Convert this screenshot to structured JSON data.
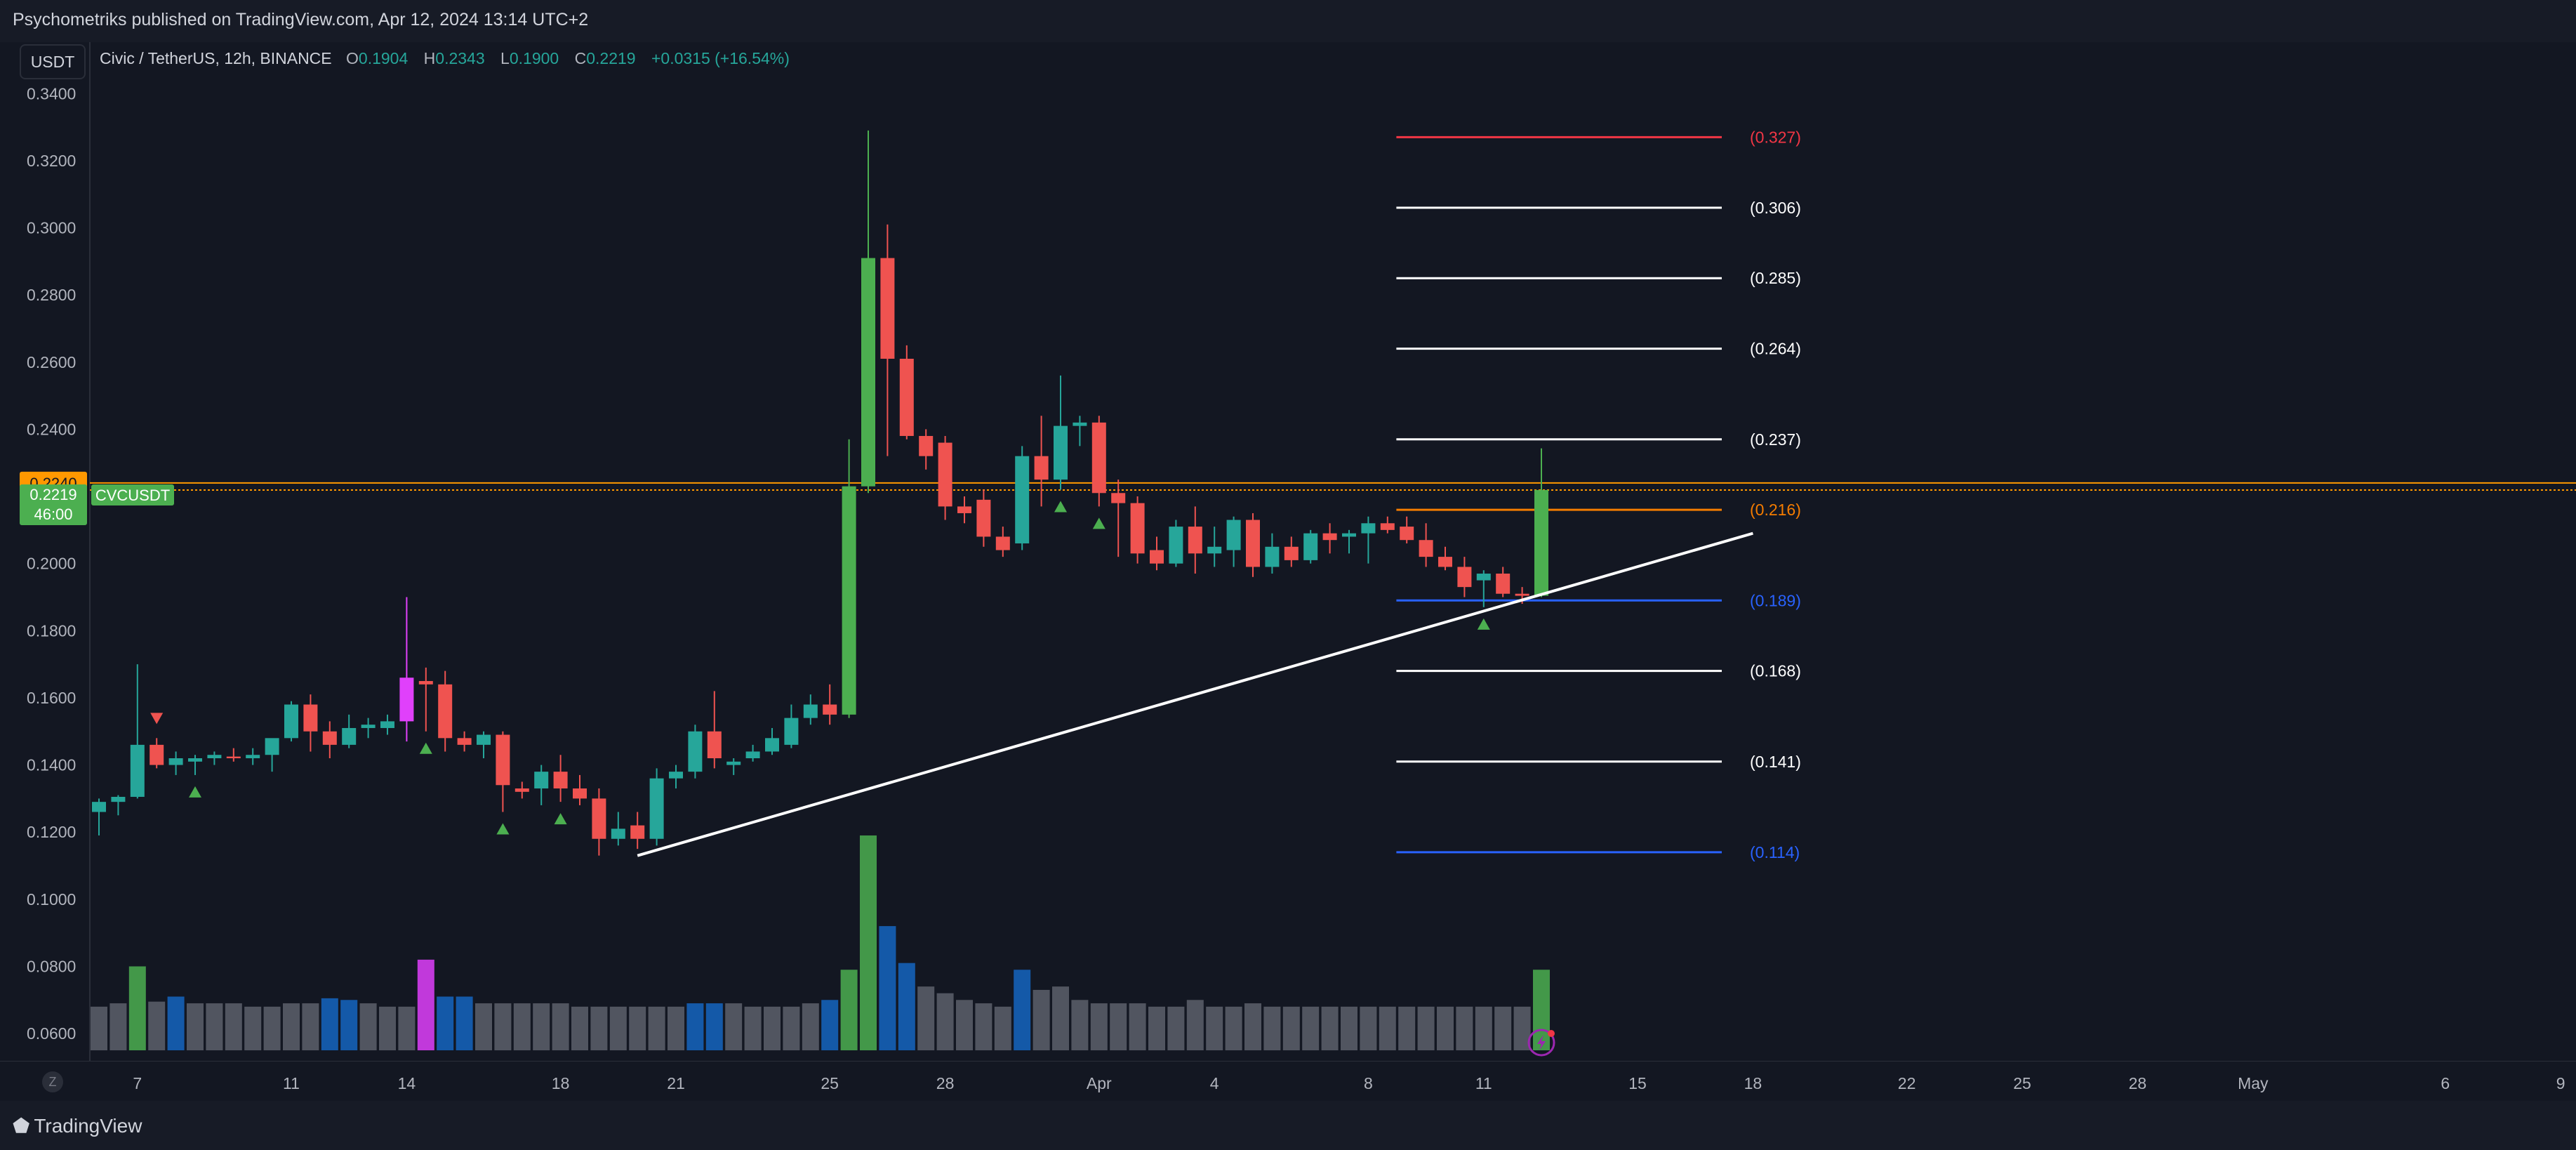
{
  "header": {
    "publisher": "Psychometriks published on TradingView.com, Apr 12, 2024 13:14 UTC+2",
    "currency_button": "USDT"
  },
  "legend": {
    "symbol": "Civic / TetherUS, 12h, BINANCE",
    "o_label": "O",
    "o": "0.1904",
    "h_label": "H",
    "h": "0.2343",
    "l_label": "L",
    "l": "0.1900",
    "c_label": "C",
    "c": "0.2219",
    "change": "+0.0315 (+16.54%)"
  },
  "footer": {
    "brand": "TradingView",
    "zoom_button": "Z"
  },
  "colors": {
    "background": "#131722",
    "up": "#26a69a",
    "down": "#ef5350",
    "signal_up": "#4caf50",
    "magenta": "#e040fb",
    "volume_neutral": "#5d606b",
    "volume_blue": "#1565c0",
    "price_line": "#ff9800",
    "trendline": "#ffffff"
  },
  "chart_data": {
    "type": "candlestick",
    "symbol": "CVCUSDT",
    "timeframe": "12h",
    "ylim": [
      0.055,
      0.348
    ],
    "y_ticks": [
      "0.3400",
      "0.3200",
      "0.3000",
      "0.2800",
      "0.2600",
      "0.2400",
      "0.2200",
      "0.2000",
      "0.1800",
      "0.1600",
      "0.1400",
      "0.1200",
      "0.1000",
      "0.0800",
      "0.0600"
    ],
    "x_tick_labels": [
      {
        "label": "7",
        "bar": 2
      },
      {
        "label": "11",
        "bar": 10
      },
      {
        "label": "14",
        "bar": 16
      },
      {
        "label": "18",
        "bar": 24
      },
      {
        "label": "21",
        "bar": 30
      },
      {
        "label": "25",
        "bar": 38
      },
      {
        "label": "28",
        "bar": 44
      },
      {
        "label": "Apr",
        "bar": 52
      },
      {
        "label": "4",
        "bar": 58
      },
      {
        "label": "8",
        "bar": 66
      },
      {
        "label": "11",
        "bar": 72
      },
      {
        "label": "15",
        "bar": 80
      },
      {
        "label": "18",
        "bar": 86
      },
      {
        "label": "22",
        "bar": 94
      },
      {
        "label": "25",
        "bar": 100
      },
      {
        "label": "28",
        "bar": 106
      },
      {
        "label": "May",
        "bar": 112
      },
      {
        "label": "6",
        "bar": 122
      },
      {
        "label": "9",
        "bar": 128
      }
    ],
    "candles": [
      [
        0.126,
        0.13,
        0.119,
        0.129
      ],
      [
        0.129,
        0.131,
        0.125,
        0.1305
      ],
      [
        0.1305,
        0.17,
        0.13,
        0.146
      ],
      [
        0.146,
        0.148,
        0.139,
        0.14
      ],
      [
        0.14,
        0.144,
        0.137,
        0.142
      ],
      [
        0.141,
        0.143,
        0.137,
        0.142
      ],
      [
        0.142,
        0.144,
        0.14,
        0.143
      ],
      [
        0.1425,
        0.145,
        0.141,
        0.142
      ],
      [
        0.142,
        0.145,
        0.14,
        0.143
      ],
      [
        0.143,
        0.147,
        0.138,
        0.148
      ],
      [
        0.148,
        0.159,
        0.147,
        0.158
      ],
      [
        0.158,
        0.161,
        0.144,
        0.15
      ],
      [
        0.15,
        0.153,
        0.142,
        0.146
      ],
      [
        0.146,
        0.155,
        0.145,
        0.151
      ],
      [
        0.151,
        0.154,
        0.148,
        0.152
      ],
      [
        0.151,
        0.155,
        0.149,
        0.153
      ],
      [
        0.153,
        0.19,
        0.147,
        0.166
      ],
      [
        0.165,
        0.169,
        0.15,
        0.164
      ],
      [
        0.164,
        0.168,
        0.144,
        0.148
      ],
      [
        0.148,
        0.15,
        0.144,
        0.146
      ],
      [
        0.146,
        0.15,
        0.142,
        0.149
      ],
      [
        0.149,
        0.15,
        0.126,
        0.134
      ],
      [
        0.133,
        0.135,
        0.13,
        0.132
      ],
      [
        0.133,
        0.14,
        0.128,
        0.138
      ],
      [
        0.138,
        0.143,
        0.129,
        0.133
      ],
      [
        0.133,
        0.137,
        0.128,
        0.13
      ],
      [
        0.13,
        0.133,
        0.113,
        0.118
      ],
      [
        0.118,
        0.126,
        0.116,
        0.121
      ],
      [
        0.122,
        0.126,
        0.115,
        0.118
      ],
      [
        0.118,
        0.139,
        0.116,
        0.136
      ],
      [
        0.136,
        0.14,
        0.133,
        0.138
      ],
      [
        0.138,
        0.152,
        0.136,
        0.15
      ],
      [
        0.15,
        0.162,
        0.139,
        0.142
      ],
      [
        0.14,
        0.142,
        0.137,
        0.141
      ],
      [
        0.142,
        0.146,
        0.141,
        0.144
      ],
      [
        0.144,
        0.151,
        0.143,
        0.148
      ],
      [
        0.146,
        0.158,
        0.145,
        0.154
      ],
      [
        0.154,
        0.161,
        0.152,
        0.158
      ],
      [
        0.158,
        0.164,
        0.152,
        0.155
      ],
      [
        0.155,
        0.237,
        0.154,
        0.223
      ],
      [
        0.223,
        0.329,
        0.221,
        0.291
      ],
      [
        0.291,
        0.301,
        0.232,
        0.261
      ],
      [
        0.261,
        0.265,
        0.237,
        0.238
      ],
      [
        0.238,
        0.24,
        0.228,
        0.232
      ],
      [
        0.236,
        0.238,
        0.213,
        0.217
      ],
      [
        0.217,
        0.22,
        0.212,
        0.215
      ],
      [
        0.219,
        0.222,
        0.205,
        0.208
      ],
      [
        0.208,
        0.211,
        0.202,
        0.204
      ],
      [
        0.206,
        0.235,
        0.204,
        0.232
      ],
      [
        0.232,
        0.244,
        0.217,
        0.225
      ],
      [
        0.225,
        0.256,
        0.222,
        0.241
      ],
      [
        0.241,
        0.244,
        0.235,
        0.242
      ],
      [
        0.242,
        0.244,
        0.217,
        0.221
      ],
      [
        0.221,
        0.225,
        0.202,
        0.218
      ],
      [
        0.218,
        0.22,
        0.2,
        0.203
      ],
      [
        0.204,
        0.208,
        0.198,
        0.2
      ],
      [
        0.2,
        0.213,
        0.199,
        0.211
      ],
      [
        0.211,
        0.217,
        0.197,
        0.203
      ],
      [
        0.203,
        0.211,
        0.199,
        0.205
      ],
      [
        0.204,
        0.214,
        0.199,
        0.213
      ],
      [
        0.213,
        0.215,
        0.196,
        0.199
      ],
      [
        0.199,
        0.209,
        0.197,
        0.205
      ],
      [
        0.205,
        0.208,
        0.199,
        0.201
      ],
      [
        0.201,
        0.21,
        0.2,
        0.209
      ],
      [
        0.209,
        0.212,
        0.203,
        0.207
      ],
      [
        0.208,
        0.21,
        0.203,
        0.209
      ],
      [
        0.209,
        0.214,
        0.2,
        0.212
      ],
      [
        0.212,
        0.214,
        0.209,
        0.21
      ],
      [
        0.211,
        0.214,
        0.206,
        0.207
      ],
      [
        0.207,
        0.212,
        0.199,
        0.202
      ],
      [
        0.202,
        0.205,
        0.198,
        0.199
      ],
      [
        0.199,
        0.202,
        0.19,
        0.193
      ],
      [
        0.195,
        0.198,
        0.187,
        0.197
      ],
      [
        0.197,
        0.199,
        0.19,
        0.191
      ],
      [
        0.191,
        0.193,
        0.188,
        0.1904
      ],
      [
        0.1904,
        0.2343,
        0.19,
        0.2219
      ]
    ],
    "volume_min": 0.055,
    "volume": [
      0.068,
      0.069,
      0.08,
      0.0695,
      0.071,
      0.069,
      0.069,
      0.069,
      0.068,
      0.068,
      0.069,
      0.069,
      0.0705,
      0.07,
      0.069,
      0.068,
      0.068,
      0.082,
      0.071,
      0.071,
      0.069,
      0.069,
      0.069,
      0.069,
      0.069,
      0.068,
      0.068,
      0.068,
      0.068,
      0.068,
      0.068,
      0.069,
      0.069,
      0.069,
      0.068,
      0.068,
      0.068,
      0.069,
      0.07,
      0.079,
      0.119,
      0.092,
      0.081,
      0.074,
      0.072,
      0.07,
      0.069,
      0.068,
      0.079,
      0.073,
      0.074,
      0.07,
      0.069,
      0.069,
      0.069,
      0.068,
      0.068,
      0.07,
      0.068,
      0.068,
      0.069,
      0.068,
      0.068,
      0.068,
      0.068,
      0.068,
      0.068,
      0.068,
      0.068,
      0.068,
      0.068,
      0.068,
      0.068,
      0.068,
      0.068,
      0.079
    ],
    "volume_colors": [
      "grey",
      "grey",
      "green",
      "grey",
      "blue",
      "grey",
      "grey",
      "grey",
      "grey",
      "grey",
      "grey",
      "grey",
      "blue",
      "blue",
      "grey",
      "grey",
      "grey",
      "magenta",
      "blue",
      "blue",
      "grey",
      "grey",
      "grey",
      "grey",
      "grey",
      "grey",
      "grey",
      "grey",
      "grey",
      "grey",
      "grey",
      "blue",
      "blue",
      "grey",
      "grey",
      "grey",
      "grey",
      "grey",
      "blue",
      "green",
      "green",
      "blue",
      "blue",
      "grey",
      "grey",
      "grey",
      "grey",
      "grey",
      "blue",
      "grey",
      "grey",
      "grey",
      "grey",
      "grey",
      "grey",
      "grey",
      "grey",
      "grey",
      "grey",
      "grey",
      "grey",
      "grey",
      "grey",
      "grey",
      "grey",
      "grey",
      "grey",
      "grey",
      "grey",
      "grey",
      "grey",
      "grey",
      "grey",
      "grey",
      "grey",
      "green"
    ],
    "signals": [
      {
        "bar": 3,
        "type": "down"
      },
      {
        "bar": 5,
        "type": "up"
      },
      {
        "bar": 17,
        "type": "up"
      },
      {
        "bar": 21,
        "type": "up"
      },
      {
        "bar": 24,
        "type": "up"
      },
      {
        "bar": 50,
        "type": "up"
      },
      {
        "bar": 52,
        "type": "up"
      },
      {
        "bar": 72,
        "type": "up"
      }
    ],
    "magenta_bar": 16,
    "trendline": {
      "start": [
        28,
        0.113
      ],
      "end": [
        86,
        0.209
      ]
    },
    "levels": [
      {
        "label": "(0.327)",
        "value": 0.327,
        "color": "#f23645"
      },
      {
        "label": "(0.306)",
        "value": 0.306,
        "color": "#ffffff"
      },
      {
        "label": "(0.285)",
        "value": 0.285,
        "color": "#ffffff"
      },
      {
        "label": "(0.264)",
        "value": 0.264,
        "color": "#ffffff"
      },
      {
        "label": "(0.237)",
        "value": 0.237,
        "color": "#ffffff"
      },
      {
        "label": "(0.216)",
        "value": 0.216,
        "color": "#f57c00"
      },
      {
        "label": "(0.189)",
        "value": 0.189,
        "color": "#2962ff"
      },
      {
        "label": "(0.168)",
        "value": 0.168,
        "color": "#ffffff"
      },
      {
        "label": "(0.141)",
        "value": 0.141,
        "color": "#ffffff"
      },
      {
        "label": "(0.114)",
        "value": 0.114,
        "color": "#2962ff"
      }
    ],
    "level_bars": [
      66,
      80
    ],
    "price_lines": [
      {
        "value": 0.224,
        "color": "#ff9800"
      },
      {
        "value": 0.2219,
        "color": "#ff9800"
      }
    ],
    "price_tags": {
      "high_tag": "0.2240",
      "close_tag": "0.2219",
      "countdown": "46:00",
      "symbol_tag": "CVCUSDT"
    }
  }
}
